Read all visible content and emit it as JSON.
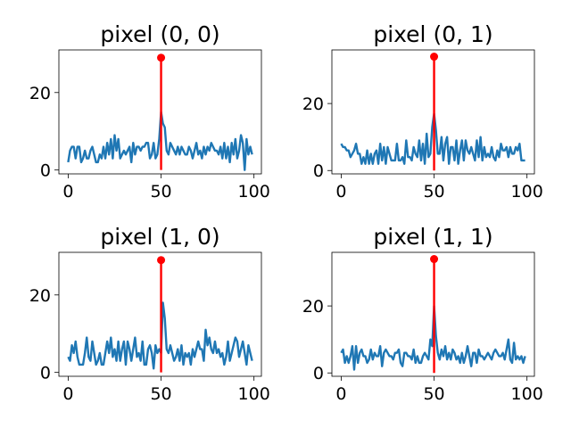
{
  "colors": {
    "series": "#1f77b4",
    "marker": "#ff0000",
    "axes": "#000000"
  },
  "chart_data": [
    {
      "type": "line",
      "title": "pixel (0, 0)",
      "xlabel": "",
      "ylabel": "",
      "xlim": [
        -5,
        104
      ],
      "ylim": [
        -1,
        31
      ],
      "xticks": [
        0,
        50,
        100
      ],
      "yticks": [
        0,
        20
      ],
      "xtick_labels": [
        "0",
        "50",
        "100"
      ],
      "ytick_labels": [
        "0",
        "20"
      ],
      "grid": false,
      "series": [
        {
          "x": [
            0,
            1,
            2,
            3,
            4,
            5,
            6,
            7,
            8,
            9,
            10,
            11,
            12,
            13,
            14,
            15,
            16,
            17,
            18,
            19,
            20,
            21,
            22,
            23,
            24,
            25,
            26,
            27,
            28,
            29,
            30,
            31,
            32,
            33,
            34,
            35,
            36,
            37,
            38,
            39,
            40,
            41,
            42,
            43,
            44,
            45,
            46,
            47,
            48,
            49,
            50,
            51,
            52,
            53,
            54,
            55,
            56,
            57,
            58,
            59,
            60,
            61,
            62,
            63,
            64,
            65,
            66,
            67,
            68,
            69,
            70,
            71,
            72,
            73,
            74,
            75,
            76,
            77,
            78,
            79,
            80,
            81,
            82,
            83,
            84,
            85,
            86,
            87,
            88,
            89,
            90,
            91,
            92,
            93,
            94,
            95,
            96,
            97,
            98,
            99
          ],
          "values": [
            2,
            5,
            6,
            6,
            3,
            6,
            6,
            2,
            3,
            5,
            3,
            3,
            5,
            6,
            4,
            2,
            2,
            4,
            3,
            6,
            3,
            7,
            4,
            8,
            3,
            9,
            5,
            8,
            3,
            4,
            5,
            4,
            5,
            6,
            2,
            7,
            4,
            6,
            6,
            5,
            6,
            6,
            7,
            7,
            3,
            4,
            7,
            3,
            4,
            8,
            15,
            12,
            11,
            5,
            4,
            7,
            6,
            5,
            4,
            6,
            4,
            6,
            5,
            4,
            4,
            6,
            5,
            3,
            5,
            7,
            4,
            5,
            3,
            6,
            4,
            6,
            5,
            7,
            6,
            5,
            5,
            4,
            6,
            3,
            7,
            3,
            6,
            2,
            7,
            4,
            8,
            3,
            5,
            9,
            7,
            0,
            8,
            4,
            6,
            4
          ]
        }
      ],
      "stem": {
        "x": 50,
        "y": 29
      }
    },
    {
      "type": "line",
      "title": "pixel (0, 1)",
      "xlabel": "",
      "ylabel": "",
      "xlim": [
        -5,
        104
      ],
      "ylim": [
        -1,
        36
      ],
      "xticks": [
        0,
        50,
        100
      ],
      "yticks": [
        0,
        20
      ],
      "xtick_labels": [
        "0",
        "50",
        "100"
      ],
      "ytick_labels": [
        "0",
        "20"
      ],
      "grid": false,
      "series": [
        {
          "x": [
            0,
            1,
            2,
            3,
            4,
            5,
            6,
            7,
            8,
            9,
            10,
            11,
            12,
            13,
            14,
            15,
            16,
            17,
            18,
            19,
            20,
            21,
            22,
            23,
            24,
            25,
            26,
            27,
            28,
            29,
            30,
            31,
            32,
            33,
            34,
            35,
            36,
            37,
            38,
            39,
            40,
            41,
            42,
            43,
            44,
            45,
            46,
            47,
            48,
            49,
            50,
            51,
            52,
            53,
            54,
            55,
            56,
            57,
            58,
            59,
            60,
            61,
            62,
            63,
            64,
            65,
            66,
            67,
            68,
            69,
            70,
            71,
            72,
            73,
            74,
            75,
            76,
            77,
            78,
            79,
            80,
            81,
            82,
            83,
            84,
            85,
            86,
            87,
            88,
            89,
            90,
            91,
            92,
            93,
            94,
            95,
            96,
            97,
            98,
            99
          ],
          "values": [
            8,
            7,
            7,
            6,
            6,
            4,
            5,
            6,
            8,
            5,
            5,
            2,
            4,
            2,
            6,
            2,
            5,
            2,
            5,
            6,
            2,
            8,
            3,
            7,
            2,
            7,
            5,
            3,
            3,
            3,
            8,
            3,
            3,
            4,
            2,
            9,
            4,
            4,
            3,
            7,
            5,
            4,
            9,
            3,
            8,
            2,
            11,
            4,
            5,
            13,
            17,
            12,
            5,
            5,
            10,
            3,
            8,
            10,
            2,
            7,
            7,
            3,
            9,
            2,
            6,
            9,
            3,
            9,
            6,
            5,
            7,
            5,
            3,
            9,
            4,
            10,
            3,
            7,
            4,
            5,
            4,
            7,
            4,
            3,
            6,
            4,
            8,
            6,
            6,
            7,
            4,
            7,
            5,
            5,
            7,
            6,
            8,
            3,
            3,
            3
          ]
        }
      ],
      "stem": {
        "x": 50,
        "y": 34
      }
    },
    {
      "type": "line",
      "title": "pixel (1, 0)",
      "xlabel": "",
      "ylabel": "",
      "xlim": [
        -5,
        104
      ],
      "ylim": [
        -1,
        31
      ],
      "xticks": [
        0,
        50,
        100
      ],
      "yticks": [
        0,
        20
      ],
      "xtick_labels": [
        "0",
        "50",
        "100"
      ],
      "ytick_labels": [
        "0",
        "20"
      ],
      "grid": false,
      "series": [
        {
          "x": [
            0,
            1,
            2,
            3,
            4,
            5,
            6,
            7,
            8,
            9,
            10,
            11,
            12,
            13,
            14,
            15,
            16,
            17,
            18,
            19,
            20,
            21,
            22,
            23,
            24,
            25,
            26,
            27,
            28,
            29,
            30,
            31,
            32,
            33,
            34,
            35,
            36,
            37,
            38,
            39,
            40,
            41,
            42,
            43,
            44,
            45,
            46,
            47,
            48,
            49,
            50,
            51,
            52,
            53,
            54,
            55,
            56,
            57,
            58,
            59,
            60,
            61,
            62,
            63,
            64,
            65,
            66,
            67,
            68,
            69,
            70,
            71,
            72,
            73,
            74,
            75,
            76,
            77,
            78,
            79,
            80,
            81,
            82,
            83,
            84,
            85,
            86,
            87,
            88,
            89,
            90,
            91,
            92,
            93,
            94,
            95,
            96,
            97,
            98,
            99
          ],
          "values": [
            4,
            3,
            7,
            5,
            8,
            4,
            2,
            2,
            2,
            5,
            9,
            4,
            3,
            8,
            5,
            2,
            3,
            5,
            2,
            2,
            5,
            8,
            5,
            9,
            4,
            6,
            3,
            8,
            3,
            6,
            8,
            2,
            8,
            6,
            3,
            6,
            9,
            4,
            5,
            3,
            8,
            2,
            2,
            6,
            7,
            5,
            1,
            7,
            5,
            6,
            5,
            18,
            14,
            6,
            5,
            7,
            5,
            3,
            4,
            6,
            3,
            7,
            2,
            5,
            4,
            5,
            2,
            6,
            4,
            6,
            8,
            6,
            6,
            3,
            11,
            7,
            9,
            6,
            5,
            8,
            5,
            6,
            4,
            5,
            2,
            4,
            8,
            3,
            5,
            7,
            9,
            8,
            4,
            6,
            8,
            5,
            2,
            7,
            5,
            3
          ]
        }
      ],
      "stem": {
        "x": 50,
        "y": 29
      }
    },
    {
      "type": "line",
      "title": "pixel (1, 1)",
      "xlabel": "",
      "ylabel": "",
      "xlim": [
        -5,
        104
      ],
      "ylim": [
        -1,
        36
      ],
      "xticks": [
        0,
        50,
        100
      ],
      "yticks": [
        0,
        20
      ],
      "xtick_labels": [
        "0",
        "50",
        "100"
      ],
      "ytick_labels": [
        "0",
        "20"
      ],
      "grid": false,
      "series": [
        {
          "x": [
            0,
            1,
            2,
            3,
            4,
            5,
            6,
            7,
            8,
            9,
            10,
            11,
            12,
            13,
            14,
            15,
            16,
            17,
            18,
            19,
            20,
            21,
            22,
            23,
            24,
            25,
            26,
            27,
            28,
            29,
            30,
            31,
            32,
            33,
            34,
            35,
            36,
            37,
            38,
            39,
            40,
            41,
            42,
            43,
            44,
            45,
            46,
            47,
            48,
            49,
            50,
            51,
            52,
            53,
            54,
            55,
            56,
            57,
            58,
            59,
            60,
            61,
            62,
            63,
            64,
            65,
            66,
            67,
            68,
            69,
            70,
            71,
            72,
            73,
            74,
            75,
            76,
            77,
            78,
            79,
            80,
            81,
            82,
            83,
            84,
            85,
            86,
            87,
            88,
            89,
            90,
            91,
            92,
            93,
            94,
            95,
            96,
            97,
            98,
            99
          ],
          "values": [
            6,
            7,
            3,
            5,
            3,
            5,
            8,
            1,
            8,
            3,
            6,
            7,
            5,
            5,
            3,
            4,
            7,
            4,
            6,
            5,
            5,
            8,
            2,
            6,
            7,
            6,
            5,
            5,
            4,
            6,
            6,
            7,
            3,
            2,
            6,
            6,
            5,
            5,
            4,
            7,
            3,
            5,
            3,
            3,
            5,
            6,
            5,
            4,
            10,
            8,
            20,
            11,
            6,
            4,
            7,
            5,
            8,
            4,
            6,
            4,
            7,
            6,
            4,
            5,
            3,
            6,
            3,
            5,
            8,
            5,
            2,
            6,
            6,
            3,
            7,
            5,
            5,
            4,
            5,
            6,
            5,
            4,
            6,
            7,
            6,
            5,
            5,
            6,
            4,
            7,
            10,
            4,
            3,
            9,
            4,
            5,
            4,
            5,
            3,
            5
          ]
        }
      ],
      "stem": {
        "x": 50,
        "y": 34
      }
    }
  ]
}
